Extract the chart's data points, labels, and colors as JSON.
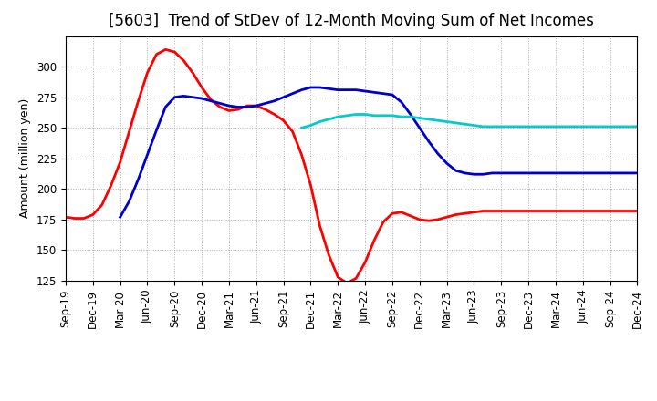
{
  "title": "[5603]  Trend of StDev of 12-Month Moving Sum of Net Incomes",
  "ylabel": "Amount (million yen)",
  "background_color": "#ffffff",
  "grid_color": "#aaaaaa",
  "ylim": [
    125,
    325
  ],
  "yticks": [
    125,
    150,
    175,
    200,
    225,
    250,
    275,
    300
  ],
  "series": {
    "3 Years": {
      "color": "#ff0000",
      "x": [
        0,
        1,
        2,
        3,
        4,
        5,
        6,
        7,
        8,
        9,
        10,
        11,
        12,
        13,
        14,
        15,
        16,
        17,
        18,
        19,
        20,
        21,
        22,
        23,
        24,
        25,
        26,
        27,
        28,
        29,
        30,
        31,
        32,
        33,
        34,
        35,
        36,
        37,
        38,
        39,
        40,
        41,
        42,
        43,
        44,
        45,
        46,
        47,
        48,
        49,
        50,
        51,
        52,
        53,
        54,
        55,
        56,
        57,
        58,
        59,
        60,
        61,
        62,
        63
      ],
      "y": [
        177,
        176,
        176,
        179,
        187,
        203,
        222,
        247,
        272,
        295,
        310,
        314,
        312,
        305,
        295,
        283,
        273,
        267,
        264,
        265,
        268,
        268,
        265,
        261,
        256,
        247,
        228,
        203,
        170,
        146,
        128,
        123,
        127,
        140,
        158,
        173,
        180,
        181,
        178,
        175,
        174,
        175,
        177,
        179,
        180,
        181,
        182,
        182,
        182,
        182,
        182,
        182,
        182,
        182,
        182,
        182,
        182,
        182,
        182,
        182,
        182,
        182,
        182,
        182
      ]
    },
    "5 Years": {
      "color": "#0000cc",
      "x": [
        6,
        7,
        8,
        9,
        10,
        11,
        12,
        13,
        14,
        15,
        16,
        17,
        18,
        19,
        20,
        21,
        22,
        23,
        24,
        25,
        26,
        27,
        28,
        29,
        30,
        31,
        32,
        33,
        34,
        35,
        36,
        37,
        38,
        39,
        40,
        41,
        42,
        43,
        44,
        45,
        46,
        47,
        48,
        49,
        50,
        51,
        52,
        53,
        54,
        55,
        56,
        57,
        58,
        59,
        60,
        61,
        62,
        63
      ],
      "y": [
        177,
        190,
        208,
        228,
        248,
        267,
        275,
        276,
        275,
        274,
        272,
        270,
        268,
        267,
        267,
        268,
        270,
        272,
        275,
        278,
        281,
        283,
        283,
        282,
        281,
        281,
        281,
        280,
        279,
        278,
        277,
        271,
        261,
        250,
        239,
        229,
        221,
        215,
        213,
        212,
        212,
        213,
        213,
        213,
        213,
        213,
        213,
        213,
        213,
        213,
        213,
        213,
        213,
        213,
        213,
        213,
        213,
        213
      ]
    },
    "7 Years": {
      "color": "#00cccc",
      "x": [
        26,
        27,
        28,
        29,
        30,
        31,
        32,
        33,
        34,
        35,
        36,
        37,
        38,
        39,
        40,
        41,
        42,
        43,
        44,
        45,
        46,
        47,
        48,
        49,
        50,
        51,
        52,
        53,
        54,
        55,
        56,
        57,
        58,
        59,
        60,
        61,
        62,
        63
      ],
      "y": [
        250,
        252,
        255,
        257,
        259,
        260,
        261,
        261,
        260,
        260,
        260,
        259,
        259,
        258,
        257,
        256,
        255,
        254,
        253,
        252,
        251,
        251,
        251,
        251,
        251,
        251,
        251,
        251,
        251,
        251,
        251,
        251,
        251,
        251,
        251,
        251,
        251,
        251
      ]
    },
    "10 Years": {
      "color": "#008000",
      "x": [],
      "y": []
    }
  },
  "xtick_labels": [
    "Sep-19",
    "Dec-19",
    "Mar-20",
    "Jun-20",
    "Sep-20",
    "Dec-20",
    "Mar-21",
    "Jun-21",
    "Sep-21",
    "Dec-21",
    "Mar-22",
    "Jun-22",
    "Sep-22",
    "Dec-22",
    "Mar-23",
    "Jun-23",
    "Sep-23",
    "Dec-23",
    "Mar-24",
    "Jun-24",
    "Sep-24",
    "Dec-24"
  ],
  "xtick_positions": [
    0,
    3,
    6,
    9,
    12,
    15,
    18,
    21,
    24,
    27,
    30,
    33,
    36,
    39,
    42,
    45,
    48,
    51,
    54,
    57,
    60,
    63
  ],
  "title_fontsize": 12,
  "axis_fontsize": 9,
  "tick_fontsize": 8.5,
  "legend_fontsize": 9.5
}
